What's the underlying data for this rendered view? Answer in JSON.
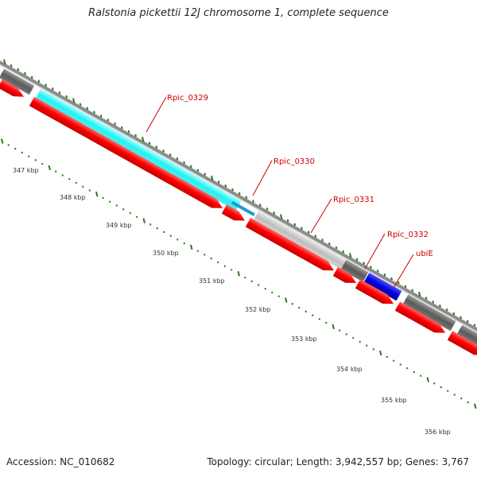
{
  "title": "Ralstonia pickettii 12J chromosome 1, complete sequence",
  "accession_text": "Accession: NC_010682",
  "summary_text": "Topology: circular; Length: 3,942,557 bp; Genes: 3,767",
  "colors": {
    "cds": "#ff0000",
    "gene_light": "#c8c8c8",
    "gene_dark": "#666666",
    "cyan": "#33ffff",
    "blue": "#0000ee",
    "tick": "#2a7a1a",
    "label": "#cc0000",
    "backbone": "#8c8c8c"
  },
  "kbp_ticks": [
    "347 kbp",
    "348 kbp",
    "349 kbp",
    "350 kbp",
    "351 kbp",
    "352 kbp",
    "353 kbp",
    "354 kbp",
    "355 kbp",
    "356 kbp"
  ],
  "gene_labels": [
    "Rpic_0329",
    "Rpic_0330",
    "Rpic_0331",
    "Rpic_0332",
    "ubiE"
  ]
}
